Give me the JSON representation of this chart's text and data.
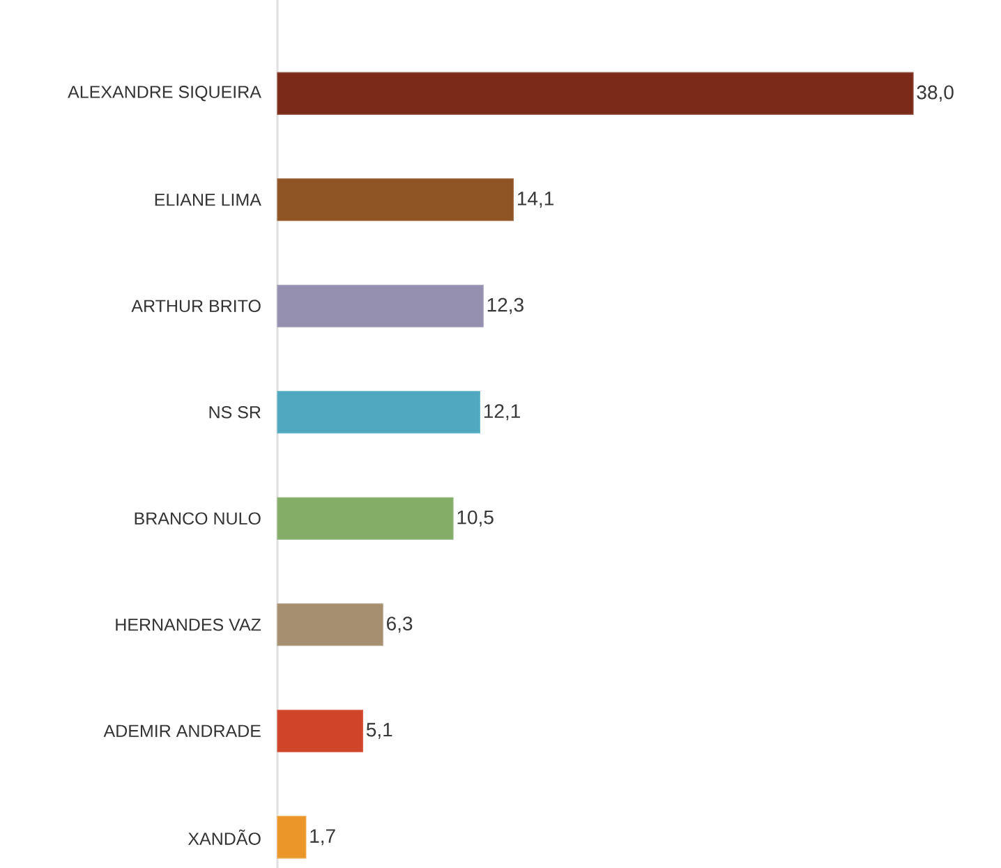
{
  "chart_data": {
    "type": "bar",
    "orientation": "horizontal",
    "categories": [
      "ALEXANDRE SIQUEIRA",
      "ELIANE LIMA",
      "ARTHUR BRITO",
      "NS SR",
      "BRANCO NULO",
      "HERNANDES VAZ",
      "ADEMIR ANDRADE",
      "XANDÃO"
    ],
    "values": [
      38.0,
      14.1,
      12.3,
      12.1,
      10.5,
      6.3,
      5.1,
      1.7
    ],
    "value_labels": [
      "38,0",
      "14,1",
      "12,3",
      "12,1",
      "10,5",
      "6,3",
      "5,1",
      "1,7"
    ],
    "colors": [
      "#7b2a1a",
      "#8f5424",
      "#9590b0",
      "#4fa8c0",
      "#84ad68",
      "#a58f70",
      "#d0452a",
      "#eb9628"
    ]
  }
}
